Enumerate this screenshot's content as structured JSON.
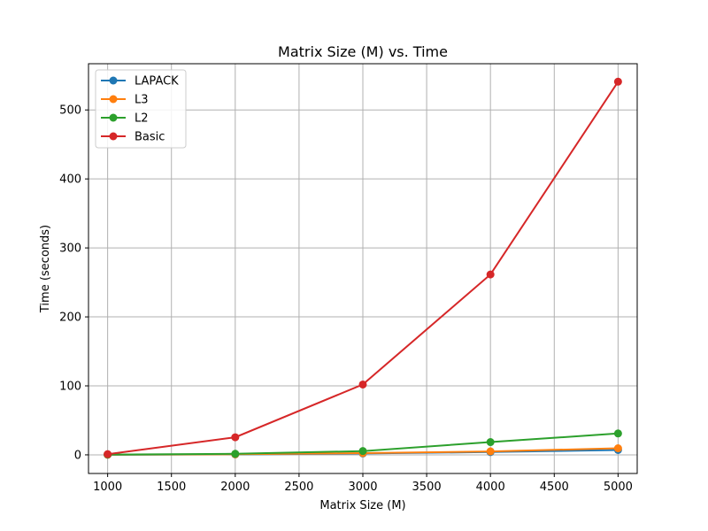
{
  "chart_data": {
    "type": "line",
    "title": "Matrix Size (M) vs. Time",
    "xlabel": "Matrix Size (M)",
    "ylabel": "Time (seconds)",
    "x": [
      1000,
      2000,
      3000,
      4000,
      5000
    ],
    "xlim": [
      850,
      5150
    ],
    "ylim": [
      -27,
      567
    ],
    "xticks": [
      1000,
      1500,
      2000,
      2500,
      3000,
      3500,
      4000,
      4500,
      5000
    ],
    "yticks": [
      0,
      100,
      200,
      300,
      400,
      500
    ],
    "grid": true,
    "legend_position": "top-left",
    "series": [
      {
        "name": "LAPACK",
        "color": "#1f77b4",
        "values": [
          0.1,
          0.6,
          2,
          4,
          7
        ]
      },
      {
        "name": "L3",
        "color": "#ff7f0e",
        "values": [
          0.2,
          0.8,
          2.5,
          5,
          9.5
        ]
      },
      {
        "name": "L2",
        "color": "#2ca02c",
        "values": [
          0.5,
          1.5,
          5.5,
          18.5,
          31
        ]
      },
      {
        "name": "Basic",
        "color": "#d62728",
        "values": [
          1,
          25.5,
          102,
          261.5,
          541
        ]
      }
    ]
  }
}
